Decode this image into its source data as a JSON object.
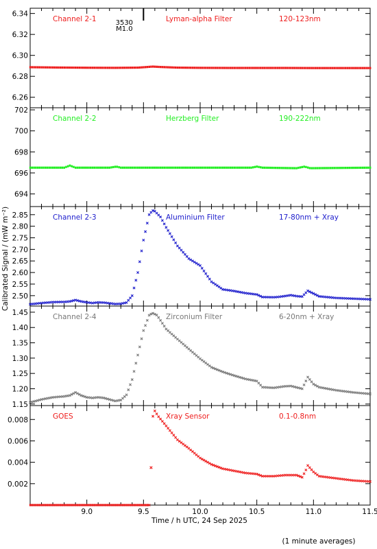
{
  "chart_data": {
    "type": "scatter",
    "xlabel": "Time / h UTC, 24 Sep 2025",
    "ylabel": "Calibrated Signal / (mW m⁻²)",
    "footnote": "(1 minute averages)",
    "xlim": [
      8.5,
      11.5
    ],
    "x_ticks": [
      "9.0",
      "9.5",
      "10.0",
      "10.5",
      "11.0",
      "11.5"
    ],
    "event_marker": {
      "x": 9.5,
      "label_top": "3530",
      "label_bottom": "M1.0"
    },
    "panels": [
      {
        "id": "channel-2-1",
        "name": "Channel 2-1",
        "filter": "Lyman-alpha Filter",
        "band": "120-123nm",
        "color": "#ee1c1c",
        "ylim": [
          6.25,
          6.345
        ],
        "y_ticks": [
          "6.26",
          "6.28",
          "6.30",
          "6.32",
          "6.34"
        ],
        "points": [
          [
            8.5,
            6.2887
          ],
          [
            8.75,
            6.2884
          ],
          [
            9.0,
            6.2882
          ],
          [
            9.25,
            6.2881
          ],
          [
            9.45,
            6.2883
          ],
          [
            9.52,
            6.2888
          ],
          [
            9.58,
            6.2893
          ],
          [
            9.65,
            6.2889
          ],
          [
            9.8,
            6.2883
          ],
          [
            10.0,
            6.2881
          ],
          [
            10.25,
            6.288
          ],
          [
            10.5,
            6.288
          ],
          [
            10.75,
            6.288
          ],
          [
            11.0,
            6.2879
          ],
          [
            11.25,
            6.2879
          ],
          [
            11.5,
            6.2879
          ]
        ]
      },
      {
        "id": "channel-2-2",
        "name": "Channel 2-2",
        "filter": "Herzberg Filter",
        "band": "190-222nm",
        "color": "#22ee22",
        "ylim": [
          692.8,
          702.2
        ],
        "y_ticks": [
          "694",
          "696",
          "698",
          "700",
          "702"
        ],
        "points": [
          [
            8.5,
            696.5
          ],
          [
            8.8,
            696.5
          ],
          [
            8.85,
            696.7
          ],
          [
            8.9,
            696.5
          ],
          [
            9.2,
            696.5
          ],
          [
            9.26,
            696.6
          ],
          [
            9.3,
            696.5
          ],
          [
            9.5,
            696.5
          ],
          [
            10.0,
            696.5
          ],
          [
            10.45,
            696.5
          ],
          [
            10.5,
            696.6
          ],
          [
            10.55,
            696.5
          ],
          [
            10.85,
            696.45
          ],
          [
            10.92,
            696.6
          ],
          [
            10.97,
            696.45
          ],
          [
            11.5,
            696.5
          ]
        ]
      },
      {
        "id": "channel-2-3",
        "name": "Channel 2-3",
        "filter": "Aluminium Filter",
        "band": "17-80nm + Xray",
        "color": "#1c1ccc",
        "ylim": [
          2.455,
          2.885
        ],
        "y_ticks": [
          "2.50",
          "2.55",
          "2.60",
          "2.65",
          "2.70",
          "2.75",
          "2.80",
          "2.85"
        ],
        "points": [
          [
            8.5,
            2.463
          ],
          [
            8.6,
            2.468
          ],
          [
            8.7,
            2.472
          ],
          [
            8.8,
            2.473
          ],
          [
            8.85,
            2.475
          ],
          [
            8.9,
            2.481
          ],
          [
            8.95,
            2.475
          ],
          [
            9.0,
            2.471
          ],
          [
            9.05,
            2.468
          ],
          [
            9.1,
            2.471
          ],
          [
            9.15,
            2.47
          ],
          [
            9.2,
            2.467
          ],
          [
            9.25,
            2.464
          ],
          [
            9.3,
            2.465
          ],
          [
            9.35,
            2.47
          ],
          [
            9.4,
            2.5
          ],
          [
            9.45,
            2.6
          ],
          [
            9.5,
            2.74
          ],
          [
            9.55,
            2.85
          ],
          [
            9.58,
            2.868
          ],
          [
            9.6,
            2.865
          ],
          [
            9.65,
            2.84
          ],
          [
            9.7,
            2.795
          ],
          [
            9.8,
            2.715
          ],
          [
            9.9,
            2.66
          ],
          [
            10.0,
            2.63
          ],
          [
            10.1,
            2.56
          ],
          [
            10.2,
            2.527
          ],
          [
            10.3,
            2.52
          ],
          [
            10.4,
            2.511
          ],
          [
            10.5,
            2.505
          ],
          [
            10.55,
            2.494
          ],
          [
            10.65,
            2.493
          ],
          [
            10.7,
            2.495
          ],
          [
            10.8,
            2.502
          ],
          [
            10.85,
            2.498
          ],
          [
            10.9,
            2.496
          ],
          [
            10.95,
            2.521
          ],
          [
            11.0,
            2.509
          ],
          [
            11.05,
            2.497
          ],
          [
            11.2,
            2.49
          ],
          [
            11.35,
            2.487
          ],
          [
            11.5,
            2.484
          ]
        ]
      },
      {
        "id": "channel-2-4",
        "name": "Channel 2-4",
        "filter": "Zirconium Filter",
        "band": "6-20nm + Xray",
        "color": "#777777",
        "ylim": [
          1.145,
          1.47
        ],
        "y_ticks": [
          "1.15",
          "1.20",
          "1.25",
          "1.30",
          "1.35",
          "1.40",
          "1.45"
        ],
        "points": [
          [
            8.5,
            1.155
          ],
          [
            8.6,
            1.165
          ],
          [
            8.7,
            1.172
          ],
          [
            8.8,
            1.175
          ],
          [
            8.85,
            1.178
          ],
          [
            8.9,
            1.188
          ],
          [
            8.95,
            1.178
          ],
          [
            9.0,
            1.172
          ],
          [
            9.05,
            1.17
          ],
          [
            9.1,
            1.172
          ],
          [
            9.15,
            1.17
          ],
          [
            9.2,
            1.165
          ],
          [
            9.25,
            1.16
          ],
          [
            9.3,
            1.163
          ],
          [
            9.35,
            1.18
          ],
          [
            9.4,
            1.23
          ],
          [
            9.45,
            1.31
          ],
          [
            9.5,
            1.39
          ],
          [
            9.55,
            1.44
          ],
          [
            9.58,
            1.447
          ],
          [
            9.62,
            1.44
          ],
          [
            9.7,
            1.395
          ],
          [
            9.8,
            1.362
          ],
          [
            9.9,
            1.33
          ],
          [
            10.0,
            1.298
          ],
          [
            10.1,
            1.27
          ],
          [
            10.2,
            1.255
          ],
          [
            10.3,
            1.243
          ],
          [
            10.4,
            1.232
          ],
          [
            10.5,
            1.225
          ],
          [
            10.55,
            1.205
          ],
          [
            10.65,
            1.203
          ],
          [
            10.75,
            1.208
          ],
          [
            10.8,
            1.209
          ],
          [
            10.9,
            1.2
          ],
          [
            10.95,
            1.238
          ],
          [
            11.0,
            1.215
          ],
          [
            11.05,
            1.205
          ],
          [
            11.2,
            1.195
          ],
          [
            11.35,
            1.188
          ],
          [
            11.5,
            1.183
          ]
        ]
      },
      {
        "id": "goes",
        "name": "GOES",
        "filter": "Xray Sensor",
        "band": "0.1-0.8nm",
        "color": "#ee1c1c",
        "ylim": [
          0.0,
          0.0093
        ],
        "y_ticks": [
          "0.002",
          "0.004",
          "0.006",
          "0.008"
        ],
        "points": [
          [
            8.5,
            0.0
          ],
          [
            9.0,
            0.0
          ],
          [
            9.5,
            0.0
          ],
          [
            9.55,
            0.0
          ],
          [
            9.57,
            0.0035
          ],
          [
            9.58,
            0.0082
          ],
          [
            9.6,
            0.0088
          ],
          [
            9.63,
            0.0083
          ],
          [
            9.7,
            0.0074
          ],
          [
            9.8,
            0.0061
          ],
          [
            9.9,
            0.0053
          ],
          [
            10.0,
            0.0044
          ],
          [
            10.1,
            0.0038
          ],
          [
            10.2,
            0.0034
          ],
          [
            10.3,
            0.0032
          ],
          [
            10.4,
            0.003
          ],
          [
            10.5,
            0.0029
          ],
          [
            10.55,
            0.0027
          ],
          [
            10.65,
            0.0027
          ],
          [
            10.75,
            0.0028
          ],
          [
            10.85,
            0.0028
          ],
          [
            10.9,
            0.0026
          ],
          [
            10.93,
            0.0032
          ],
          [
            10.95,
            0.0037
          ],
          [
            11.0,
            0.0031
          ],
          [
            11.05,
            0.0027
          ],
          [
            11.2,
            0.0025
          ],
          [
            11.35,
            0.0023
          ],
          [
            11.5,
            0.0022
          ]
        ]
      }
    ]
  }
}
